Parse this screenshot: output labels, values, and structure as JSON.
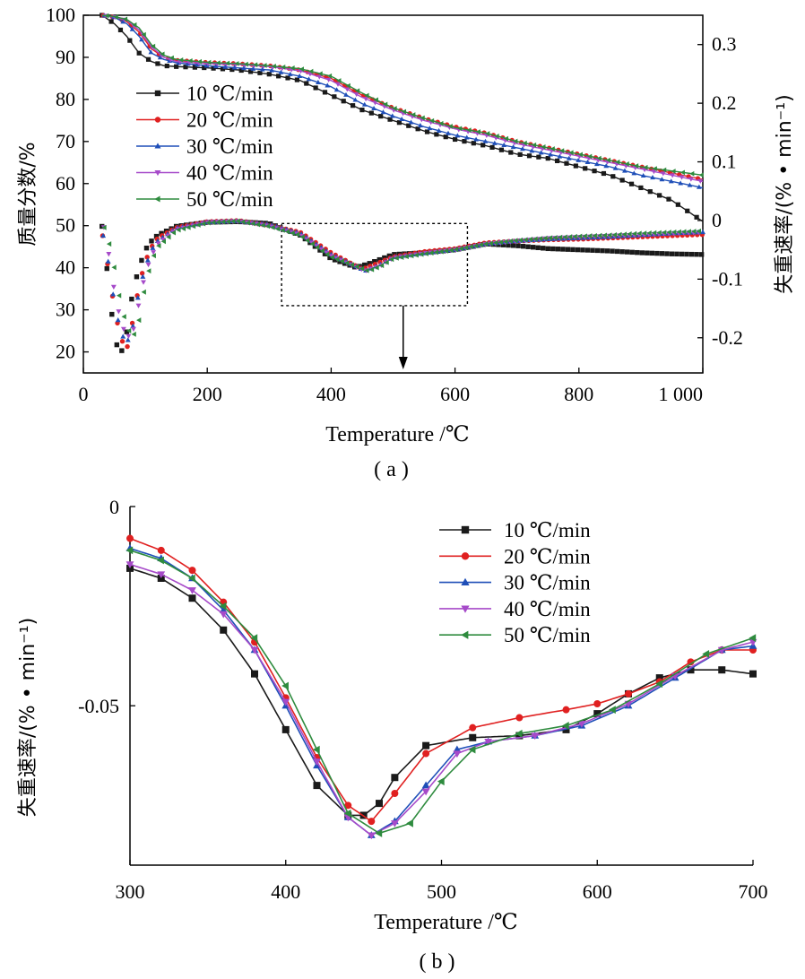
{
  "chart_data": [
    {
      "type": "line",
      "panel_label": "( a )",
      "xlabel": "Temperature /℃",
      "ylabel_left": "质量分数/%",
      "ylabel_right": "失重速率/(% • min⁻¹)",
      "xlim": [
        0,
        1000
      ],
      "ylim_left": [
        15,
        100
      ],
      "ylim_right": [
        -0.26,
        0.35
      ],
      "x_ticks": [
        0,
        200,
        400,
        600,
        800,
        1000
      ],
      "x_tick_labels": [
        "0",
        "200",
        "400",
        "600",
        "800",
        "1 000"
      ],
      "y_left_ticks": [
        20,
        30,
        40,
        50,
        60,
        70,
        80,
        90,
        100
      ],
      "y_left_tick_labels": [
        "20",
        "30",
        "40",
        "50",
        "60",
        "70",
        "80",
        "90",
        "100"
      ],
      "y_right_ticks": [
        -0.2,
        -0.1,
        0,
        0.1,
        0.2,
        0.3
      ],
      "y_right_tick_labels": [
        "-0.2",
        "-0.1",
        "0",
        "0.1",
        "0.2",
        "0.3"
      ],
      "legend_position": "upper-left",
      "zoom_box": {
        "x": [
          320,
          620
        ],
        "y_left": [
          31,
          50.5
        ]
      },
      "tg_series": [
        {
          "name": "10 ℃/min",
          "color": "#1a1a1a",
          "marker": "square",
          "x": [
            30,
            50,
            70,
            90,
            110,
            130,
            150,
            200,
            250,
            300,
            350,
            400,
            450,
            500,
            550,
            600,
            650,
            700,
            750,
            800,
            850,
            900,
            950,
            1000
          ],
          "y": [
            100,
            98,
            95,
            91,
            89,
            88,
            87.8,
            87.5,
            87,
            86,
            84.5,
            81,
            77.5,
            75,
            72.5,
            70.5,
            69,
            67,
            66,
            64,
            62,
            59,
            56,
            51
          ]
        },
        {
          "name": "20 ℃/min",
          "color": "#e02020",
          "marker": "circle",
          "x": [
            30,
            50,
            70,
            90,
            110,
            130,
            150,
            200,
            250,
            300,
            350,
            400,
            450,
            500,
            550,
            600,
            650,
            700,
            750,
            800,
            850,
            900,
            950,
            1000
          ],
          "y": [
            100,
            99.5,
            98.5,
            96,
            92,
            90,
            89.3,
            88.8,
            88.5,
            88,
            87,
            85,
            81,
            78,
            75.5,
            73.5,
            72,
            70,
            68.5,
            67,
            65.5,
            64,
            62.5,
            61
          ]
        },
        {
          "name": "30 ℃/min",
          "color": "#1f4fb8",
          "marker": "triangle-up",
          "x": [
            30,
            50,
            70,
            90,
            110,
            130,
            150,
            200,
            250,
            300,
            350,
            400,
            450,
            500,
            550,
            600,
            650,
            700,
            750,
            800,
            850,
            900,
            950,
            1000
          ],
          "y": [
            100,
            99.5,
            98,
            95,
            91,
            89.5,
            88.7,
            88,
            87.5,
            87,
            85.5,
            83,
            79,
            76,
            73.5,
            71.5,
            70,
            68.5,
            67,
            65.5,
            64,
            62,
            60.5,
            59
          ]
        },
        {
          "name": "40 ℃/min",
          "color": "#a64ac9",
          "marker": "triangle-down",
          "x": [
            30,
            50,
            70,
            90,
            110,
            130,
            150,
            200,
            250,
            300,
            350,
            400,
            450,
            500,
            550,
            600,
            650,
            700,
            750,
            800,
            850,
            900,
            950,
            1000
          ],
          "y": [
            100,
            99.6,
            98.8,
            96.5,
            92.5,
            90,
            89,
            88.5,
            88.3,
            87.8,
            86.8,
            84.5,
            80.5,
            77.5,
            75,
            73,
            71.5,
            69.5,
            68,
            66.5,
            65,
            63.5,
            62,
            60.5
          ]
        },
        {
          "name": "50 ℃/min",
          "color": "#2e8b3e",
          "marker": "triangle-left",
          "x": [
            30,
            50,
            70,
            90,
            110,
            130,
            150,
            200,
            250,
            300,
            350,
            400,
            450,
            500,
            550,
            600,
            650,
            700,
            750,
            800,
            850,
            900,
            950,
            1000
          ],
          "y": [
            100,
            99.7,
            99,
            97,
            93,
            90.5,
            89.5,
            88.8,
            88.5,
            88,
            87.3,
            85.5,
            81.5,
            78,
            75.5,
            73.3,
            72,
            70,
            68.5,
            67,
            65.5,
            64,
            63,
            62
          ]
        }
      ],
      "dtg_series": [
        {
          "name": "10 ℃/min",
          "color": "#1a1a1a",
          "marker": "square",
          "x": [
            30,
            40,
            50,
            60,
            70,
            80,
            90,
            100,
            110,
            120,
            150,
            200,
            250,
            300,
            350,
            400,
            440,
            460,
            500,
            550,
            600,
            650,
            700,
            750,
            800,
            850,
            900,
            950,
            1000
          ],
          "y": [
            -0.01,
            -0.1,
            -0.2,
            -0.23,
            -0.19,
            -0.12,
            -0.08,
            -0.05,
            -0.035,
            -0.025,
            -0.01,
            -0.003,
            -0.002,
            -0.005,
            -0.025,
            -0.065,
            -0.08,
            -0.074,
            -0.058,
            -0.055,
            -0.05,
            -0.04,
            -0.043,
            -0.048,
            -0.05,
            -0.052,
            -0.055,
            -0.057,
            -0.058
          ]
        },
        {
          "name": "20 ℃/min",
          "color": "#e02020",
          "marker": "circle",
          "x": [
            30,
            40,
            50,
            60,
            70,
            80,
            90,
            100,
            110,
            120,
            150,
            200,
            250,
            300,
            350,
            400,
            450,
            470,
            500,
            550,
            600,
            650,
            700,
            750,
            800,
            850,
            900,
            950,
            1000
          ],
          "y": [
            -0.02,
            -0.08,
            -0.15,
            -0.2,
            -0.22,
            -0.17,
            -0.11,
            -0.07,
            -0.045,
            -0.03,
            -0.012,
            -0.002,
            0,
            -0.008,
            -0.02,
            -0.055,
            -0.083,
            -0.075,
            -0.062,
            -0.053,
            -0.048,
            -0.038,
            -0.035,
            -0.033,
            -0.032,
            -0.03,
            -0.028,
            -0.026,
            -0.024
          ]
        },
        {
          "name": "30 ℃/min",
          "color": "#1f4fb8",
          "marker": "triangle-up",
          "x": [
            30,
            40,
            50,
            60,
            70,
            80,
            90,
            100,
            110,
            120,
            150,
            200,
            250,
            300,
            350,
            400,
            455,
            480,
            500,
            550,
            600,
            650,
            700,
            750,
            800,
            850,
            900,
            950,
            1000
          ],
          "y": [
            -0.015,
            -0.07,
            -0.14,
            -0.19,
            -0.21,
            -0.18,
            -0.12,
            -0.08,
            -0.05,
            -0.035,
            -0.013,
            -0.003,
            -0.001,
            -0.007,
            -0.022,
            -0.058,
            -0.086,
            -0.075,
            -0.063,
            -0.056,
            -0.05,
            -0.04,
            -0.035,
            -0.032,
            -0.03,
            -0.028,
            -0.025,
            -0.022,
            -0.02
          ]
        },
        {
          "name": "40 ℃/min",
          "color": "#a64ac9",
          "marker": "triangle-down",
          "x": [
            30,
            40,
            50,
            60,
            70,
            80,
            90,
            100,
            110,
            120,
            150,
            200,
            250,
            300,
            350,
            400,
            455,
            480,
            500,
            550,
            600,
            650,
            700,
            750,
            800,
            850,
            900,
            950,
            1000
          ],
          "y": [
            0.005,
            -0.05,
            -0.12,
            -0.17,
            -0.2,
            -0.19,
            -0.14,
            -0.09,
            -0.06,
            -0.04,
            -0.015,
            -0.003,
            -0.001,
            -0.009,
            -0.024,
            -0.06,
            -0.086,
            -0.077,
            -0.064,
            -0.056,
            -0.05,
            -0.04,
            -0.035,
            -0.03,
            -0.028,
            -0.026,
            -0.024,
            -0.022,
            -0.02
          ]
        },
        {
          "name": "50 ℃/min",
          "color": "#2e8b3e",
          "marker": "triangle-left",
          "x": [
            30,
            40,
            50,
            60,
            70,
            80,
            90,
            100,
            110,
            120,
            150,
            200,
            250,
            300,
            350,
            400,
            460,
            480,
            500,
            550,
            600,
            650,
            700,
            750,
            800,
            850,
            900,
            950,
            1000
          ],
          "y": [
            0,
            -0.03,
            -0.08,
            -0.14,
            -0.18,
            -0.2,
            -0.17,
            -0.11,
            -0.07,
            -0.045,
            -0.017,
            -0.004,
            -0.001,
            -0.01,
            -0.025,
            -0.062,
            -0.086,
            -0.078,
            -0.065,
            -0.057,
            -0.05,
            -0.04,
            -0.034,
            -0.03,
            -0.027,
            -0.025,
            -0.022,
            -0.02,
            -0.018
          ]
        }
      ]
    },
    {
      "type": "line",
      "panel_label": "( b )",
      "xlabel": "Temperature /℃",
      "ylabel": "失重速率/(% • min⁻¹)",
      "xlim": [
        300,
        700
      ],
      "ylim": [
        -0.09,
        0
      ],
      "x_ticks": [
        300,
        400,
        500,
        600,
        700
      ],
      "x_tick_labels": [
        "300",
        "400",
        "500",
        "600",
        "700"
      ],
      "y_ticks": [
        -0.05,
        0
      ],
      "y_tick_labels": [
        "-0.05",
        "0"
      ],
      "legend_position": "upper-right",
      "series": [
        {
          "name": "10 ℃/min",
          "color": "#1a1a1a",
          "marker": "square",
          "x": [
            300,
            320,
            340,
            360,
            380,
            400,
            420,
            440,
            450,
            460,
            470,
            490,
            520,
            550,
            580,
            600,
            620,
            640,
            660,
            680,
            700
          ],
          "y": [
            -0.0155,
            -0.018,
            -0.023,
            -0.031,
            -0.042,
            -0.056,
            -0.07,
            -0.0775,
            -0.0775,
            -0.0745,
            -0.068,
            -0.06,
            -0.058,
            -0.0575,
            -0.056,
            -0.052,
            -0.047,
            -0.043,
            -0.041,
            -0.041,
            -0.042
          ]
        },
        {
          "name": "20 ℃/min",
          "color": "#e02020",
          "marker": "circle",
          "x": [
            300,
            320,
            340,
            360,
            380,
            400,
            420,
            440,
            455,
            470,
            490,
            520,
            550,
            580,
            600,
            620,
            640,
            660,
            680,
            700
          ],
          "y": [
            -0.008,
            -0.011,
            -0.016,
            -0.024,
            -0.034,
            -0.048,
            -0.063,
            -0.075,
            -0.079,
            -0.072,
            -0.062,
            -0.0555,
            -0.053,
            -0.051,
            -0.0495,
            -0.047,
            -0.044,
            -0.039,
            -0.036,
            -0.036
          ]
        },
        {
          "name": "30 ℃/min",
          "color": "#1f4fb8",
          "marker": "triangle-up",
          "x": [
            300,
            320,
            340,
            360,
            380,
            400,
            420,
            440,
            455,
            470,
            490,
            510,
            530,
            560,
            590,
            620,
            650,
            680,
            700
          ],
          "y": [
            -0.0105,
            -0.013,
            -0.018,
            -0.026,
            -0.036,
            -0.05,
            -0.065,
            -0.078,
            -0.0825,
            -0.079,
            -0.07,
            -0.061,
            -0.059,
            -0.0575,
            -0.055,
            -0.05,
            -0.043,
            -0.036,
            -0.035
          ]
        },
        {
          "name": "40 ℃/min",
          "color": "#a64ac9",
          "marker": "triangle-down",
          "x": [
            300,
            320,
            340,
            360,
            380,
            400,
            420,
            440,
            455,
            470,
            490,
            510,
            530,
            560,
            590,
            620,
            650,
            680,
            700
          ],
          "y": [
            -0.0145,
            -0.017,
            -0.021,
            -0.027,
            -0.036,
            -0.049,
            -0.064,
            -0.078,
            -0.0825,
            -0.0795,
            -0.0715,
            -0.062,
            -0.059,
            -0.0575,
            -0.0545,
            -0.0495,
            -0.0425,
            -0.036,
            -0.034
          ]
        },
        {
          "name": "50 ℃/min",
          "color": "#2e8b3e",
          "marker": "triangle-left",
          "x": [
            300,
            320,
            340,
            360,
            380,
            400,
            420,
            440,
            460,
            480,
            500,
            520,
            550,
            580,
            610,
            640,
            670,
            700
          ],
          "y": [
            -0.011,
            -0.0135,
            -0.018,
            -0.025,
            -0.033,
            -0.045,
            -0.061,
            -0.077,
            -0.082,
            -0.0795,
            -0.069,
            -0.061,
            -0.057,
            -0.055,
            -0.051,
            -0.0445,
            -0.037,
            -0.033
          ]
        }
      ]
    }
  ]
}
